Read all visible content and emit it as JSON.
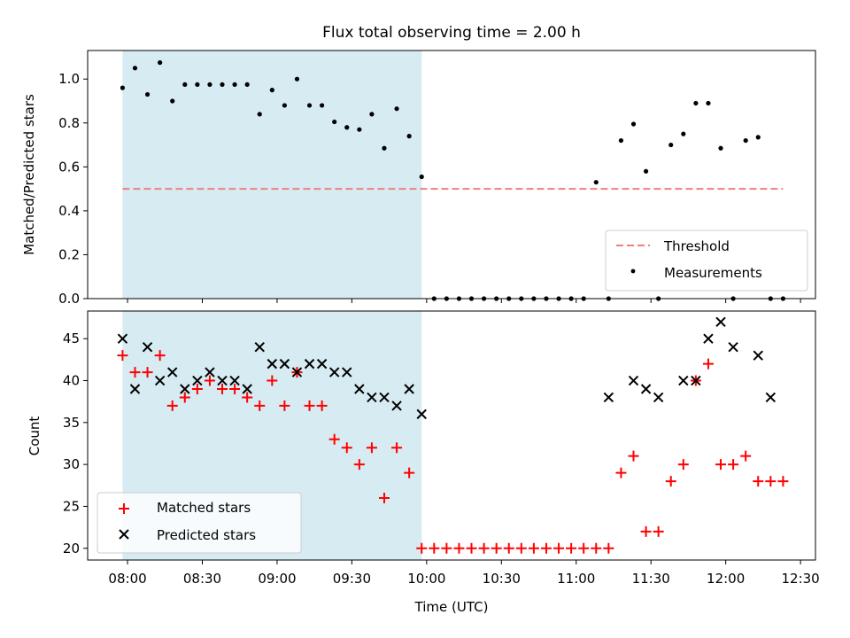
{
  "chart_data": [
    {
      "type": "scatter",
      "title": "Flux total observing time = 2.00 h",
      "ylabel": "Matched/Predicted stars",
      "xlabel": "",
      "ylim": [
        0,
        1.13
      ],
      "y_ticks": [
        0.0,
        0.2,
        0.4,
        0.6,
        0.8,
        1.0
      ],
      "y_tick_labels": [
        "0.0",
        "0.2",
        "0.4",
        "0.6",
        "0.8",
        "1.0"
      ],
      "shaded_span": [
        "07:58",
        "09:58"
      ],
      "threshold": {
        "name": "Threshold",
        "value": 0.5,
        "x_range": [
          "07:58",
          "12:23"
        ],
        "color": "#f08080"
      },
      "legend": [
        "Threshold",
        "Measurements"
      ],
      "legend_position": "lower right",
      "series": [
        {
          "name": "Measurements",
          "color": "#000000",
          "x": [
            "07:58",
            "08:03",
            "08:08",
            "08:13",
            "08:18",
            "08:23",
            "08:28",
            "08:33",
            "08:38",
            "08:43",
            "08:48",
            "08:53",
            "08:58",
            "09:03",
            "09:08",
            "09:13",
            "09:18",
            "09:23",
            "09:28",
            "09:33",
            "09:38",
            "09:43",
            "09:48",
            "09:53",
            "09:58",
            "10:03",
            "10:08",
            "10:13",
            "10:18",
            "10:23",
            "10:28",
            "10:33",
            "10:38",
            "10:43",
            "10:48",
            "10:53",
            "10:58",
            "11:03",
            "11:08",
            "11:13",
            "11:18",
            "11:23",
            "11:28",
            "11:33",
            "11:38",
            "11:43",
            "11:48",
            "11:53",
            "11:58",
            "12:03",
            "12:08",
            "12:13",
            "12:18",
            "12:23"
          ],
          "y": [
            0.96,
            1.05,
            0.93,
            1.075,
            0.9,
            0.975,
            0.975,
            0.975,
            0.975,
            0.975,
            0.975,
            0.84,
            0.95,
            0.88,
            1.0,
            0.88,
            0.88,
            0.805,
            0.78,
            0.77,
            0.84,
            0.685,
            0.865,
            0.74,
            0.555,
            0.0,
            0.0,
            0.0,
            0.0,
            0.0,
            0.0,
            0.0,
            0.0,
            0.0,
            0.0,
            0.0,
            0.0,
            0.0,
            0.53,
            0.0,
            0.72,
            0.795,
            0.58,
            0.0,
            0.7,
            0.75,
            0.89,
            0.89,
            0.685,
            0.0,
            0.72,
            0.735,
            0.0,
            0.0
          ]
        }
      ]
    },
    {
      "type": "scatter",
      "title": "",
      "ylabel": "Count",
      "xlabel": "Time (UTC)",
      "ylim": [
        18.6,
        48.3
      ],
      "y_ticks": [
        20,
        25,
        30,
        35,
        40,
        45
      ],
      "y_tick_labels": [
        "20",
        "25",
        "30",
        "35",
        "40",
        "45"
      ],
      "x_tick_labels": [
        "08:00",
        "08:30",
        "09:00",
        "09:30",
        "10:00",
        "10:30",
        "11:00",
        "11:30",
        "12:00",
        "12:30"
      ],
      "shaded_span": [
        "07:58",
        "09:58"
      ],
      "legend": [
        "Matched stars",
        "Predicted stars"
      ],
      "legend_position": "lower left",
      "series": [
        {
          "name": "Matched stars",
          "color": "#ff0000",
          "marker": "+",
          "x": [
            "07:58",
            "08:03",
            "08:08",
            "08:13",
            "08:18",
            "08:23",
            "08:28",
            "08:33",
            "08:38",
            "08:43",
            "08:48",
            "08:53",
            "08:58",
            "09:03",
            "09:08",
            "09:13",
            "09:18",
            "09:23",
            "09:28",
            "09:33",
            "09:38",
            "09:43",
            "09:48",
            "09:53",
            "09:58",
            "10:03",
            "10:08",
            "10:13",
            "10:18",
            "10:23",
            "10:28",
            "10:33",
            "10:38",
            "10:43",
            "10:48",
            "10:53",
            "10:58",
            "11:03",
            "11:08",
            "11:13",
            "11:18",
            "11:23",
            "11:28",
            "11:33",
            "11:38",
            "11:43",
            "11:48",
            "11:53",
            "11:58",
            "12:03",
            "12:08",
            "12:13",
            "12:18",
            "12:23"
          ],
          "y": [
            43,
            41,
            41,
            43,
            37,
            38,
            39,
            40,
            39,
            39,
            38,
            37,
            40,
            37,
            41,
            37,
            37,
            33,
            32,
            30,
            32,
            26,
            32,
            29,
            20,
            20,
            20,
            20,
            20,
            20,
            20,
            20,
            20,
            20,
            20,
            20,
            20,
            20,
            20,
            20,
            29,
            31,
            22,
            22,
            28,
            30,
            40,
            42,
            30,
            30,
            31,
            28,
            28,
            28
          ]
        },
        {
          "name": "Predicted stars",
          "color": "#000000",
          "marker": "x",
          "x": [
            "07:58",
            "08:03",
            "08:08",
            "08:13",
            "08:18",
            "08:23",
            "08:28",
            "08:33",
            "08:38",
            "08:43",
            "08:48",
            "08:53",
            "08:58",
            "09:03",
            "09:08",
            "09:13",
            "09:18",
            "09:23",
            "09:28",
            "09:33",
            "09:38",
            "09:43",
            "09:48",
            "09:53",
            "09:58",
            "11:13",
            "11:23",
            "11:28",
            "11:33",
            "11:43",
            "11:48",
            "11:53",
            "11:58",
            "12:03",
            "12:13",
            "12:18"
          ],
          "y": [
            45,
            39,
            44,
            40,
            41,
            39,
            40,
            41,
            40,
            40,
            39,
            44,
            42,
            42,
            41,
            42,
            42,
            41,
            41,
            39,
            38,
            38,
            37,
            39,
            36,
            38,
            40,
            39,
            38,
            40,
            40,
            45,
            47,
            44,
            43,
            38
          ]
        }
      ]
    }
  ]
}
